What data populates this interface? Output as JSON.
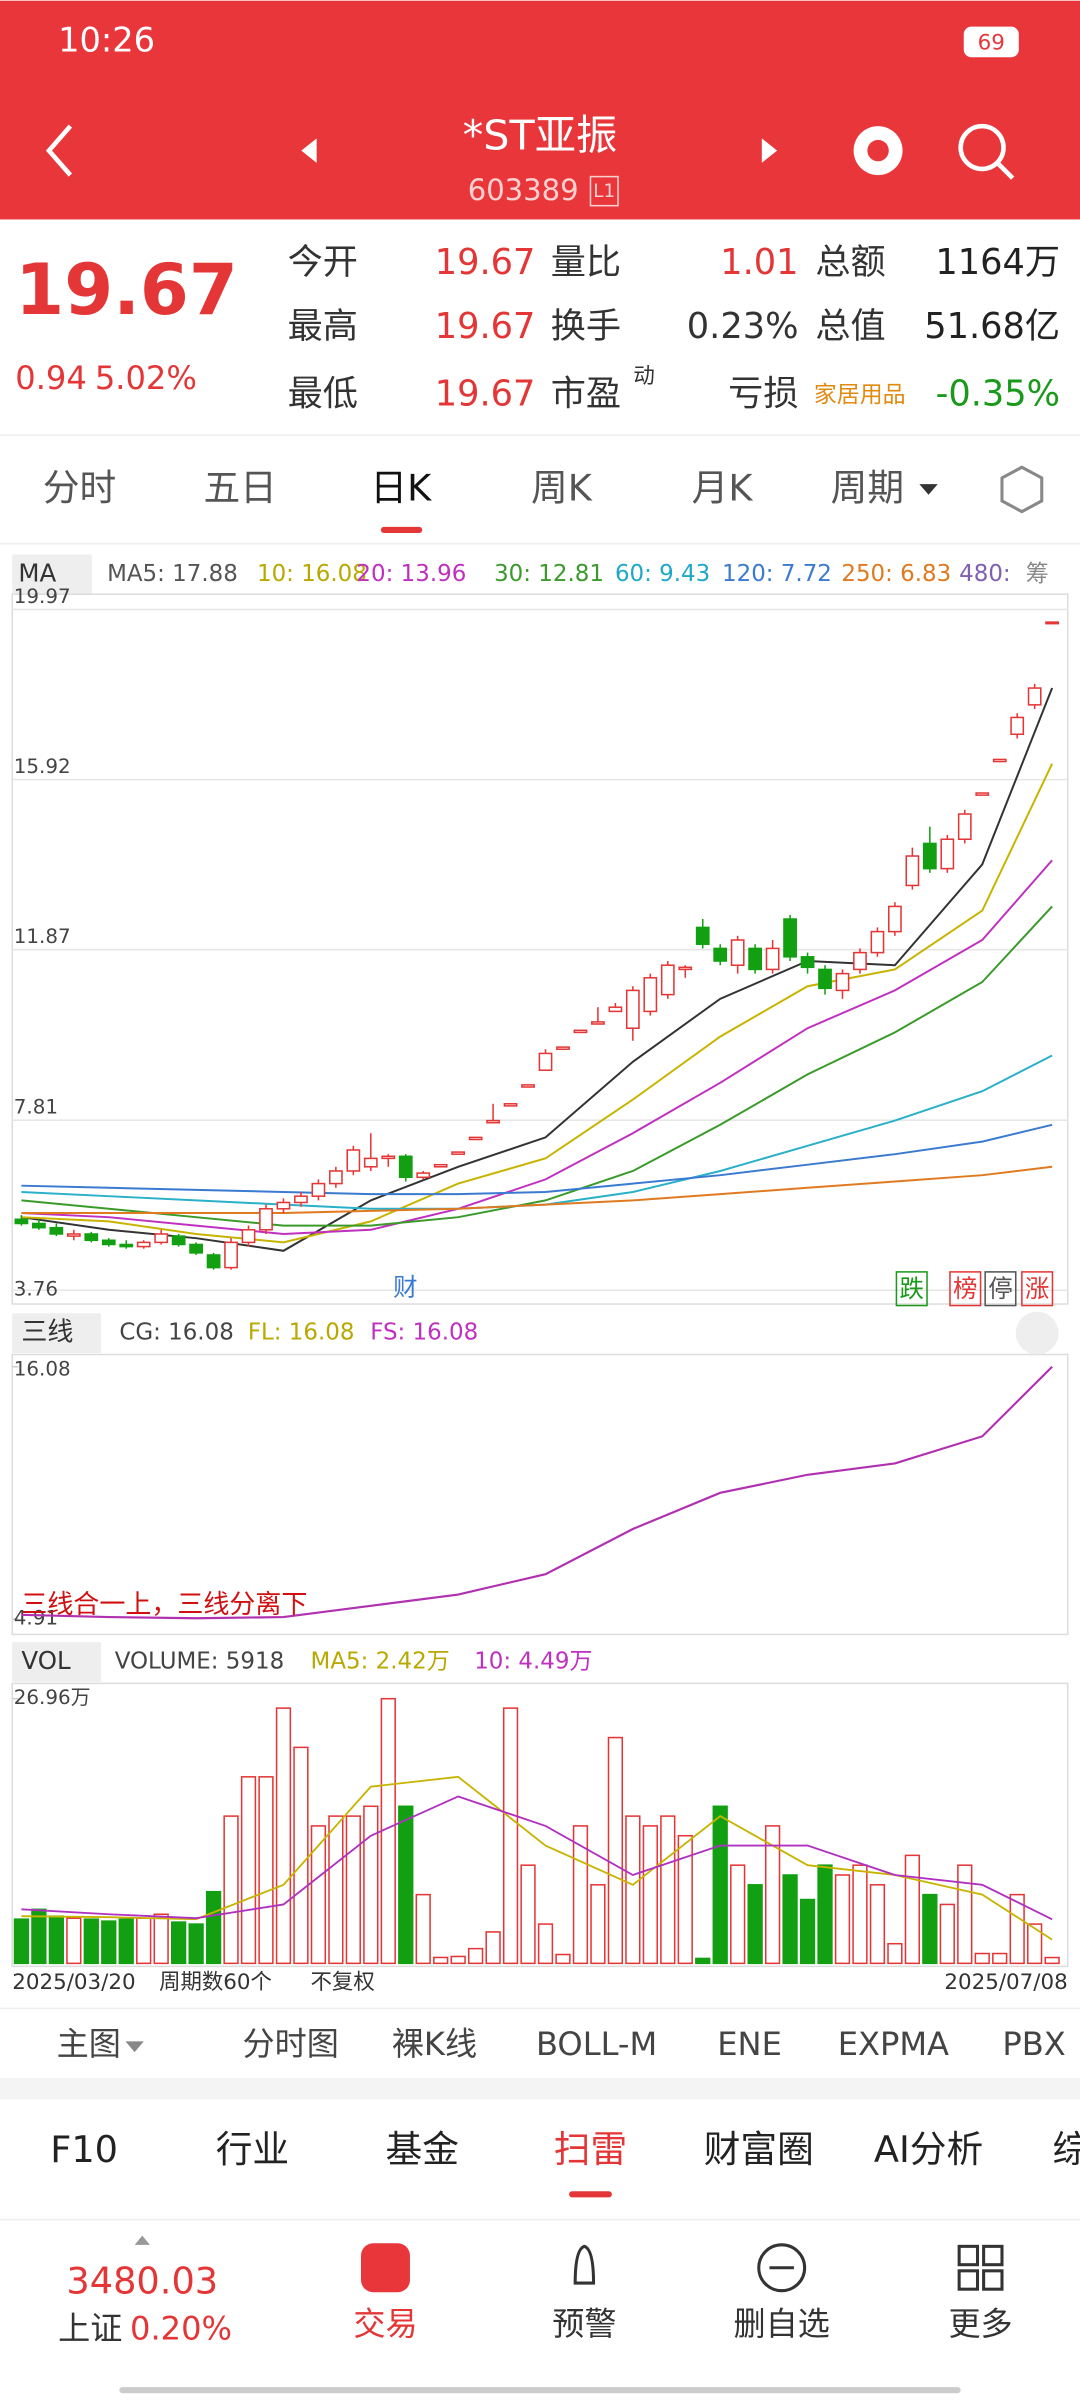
{
  "status": {
    "time": "10:26",
    "battery": "69"
  },
  "header": {
    "title": "*ST亚振",
    "code": "603389",
    "badge": "L1"
  },
  "quote": {
    "price": "19.67",
    "change": "0.94",
    "pct": "5.02%",
    "left": [
      {
        "label": "今开",
        "value": "19.67"
      },
      {
        "label": "最高",
        "value": "19.67"
      },
      {
        "label": "最低",
        "value": "19.67"
      }
    ],
    "mid": [
      {
        "label": "量比",
        "value": "1.01"
      },
      {
        "label": "换手",
        "value": "0.23%"
      },
      {
        "label": "市盈",
        "sup": "动",
        "value": "亏损"
      }
    ],
    "right": [
      {
        "label": "总额",
        "value": "1164万"
      },
      {
        "label": "总值",
        "value": "51.68亿"
      },
      {
        "label": "家居用品",
        "value": "-0.35%"
      }
    ]
  },
  "tabs": [
    "分时",
    "五日",
    "日K",
    "周K",
    "月K",
    "周期"
  ],
  "kline": {
    "legend": [
      "MA",
      "MA5: 17.88",
      "10: 16.08",
      "20: 13.96",
      "30: 12.81",
      "60: 9.43",
      "120: 7.72",
      "250: 6.83",
      "480:",
      "筹"
    ],
    "ylim": [
      3.76,
      19.97
    ],
    "yticks": [
      19.97,
      15.92,
      11.87,
      7.81,
      3.76
    ],
    "candles": [
      [
        5.45,
        5.55,
        5.3,
        5.35
      ],
      [
        5.35,
        5.45,
        5.2,
        5.25
      ],
      [
        5.25,
        5.35,
        5.05,
        5.1
      ],
      [
        5.05,
        5.2,
        4.95,
        5.1
      ],
      [
        5.1,
        5.15,
        4.9,
        4.95
      ],
      [
        4.95,
        5.0,
        4.8,
        4.85
      ],
      [
        4.85,
        4.95,
        4.75,
        4.8
      ],
      [
        4.8,
        4.95,
        4.75,
        4.9
      ],
      [
        4.9,
        5.2,
        4.85,
        5.1
      ],
      [
        5.05,
        5.1,
        4.8,
        4.85
      ],
      [
        4.85,
        4.9,
        4.6,
        4.65
      ],
      [
        4.6,
        4.65,
        4.25,
        4.3
      ],
      [
        4.3,
        5.0,
        4.25,
        4.9
      ],
      [
        4.9,
        5.3,
        4.8,
        5.2
      ],
      [
        5.2,
        5.8,
        5.1,
        5.7
      ],
      [
        5.7,
        5.95,
        5.6,
        5.85
      ],
      [
        5.85,
        6.1,
        5.75,
        6.0
      ],
      [
        6.0,
        6.4,
        5.9,
        6.3
      ],
      [
        6.3,
        6.7,
        6.2,
        6.6
      ],
      [
        6.6,
        7.2,
        6.5,
        7.1
      ],
      [
        6.7,
        7.5,
        6.6,
        6.9
      ],
      [
        6.9,
        7.0,
        6.7,
        6.95
      ],
      [
        6.95,
        7.0,
        6.35,
        6.45
      ],
      [
        6.45,
        6.6,
        6.4,
        6.55
      ],
      [
        6.7,
        6.75,
        6.7,
        6.75
      ],
      [
        7.0,
        7.05,
        7.0,
        7.05
      ],
      [
        7.35,
        7.4,
        7.35,
        7.4
      ],
      [
        7.75,
        8.2,
        7.75,
        7.8
      ],
      [
        8.15,
        8.2,
        8.15,
        8.2
      ],
      [
        8.6,
        8.65,
        8.6,
        8.65
      ],
      [
        9.0,
        9.5,
        9.0,
        9.4
      ],
      [
        9.5,
        9.55,
        9.5,
        9.55
      ],
      [
        9.9,
        9.95,
        9.9,
        9.95
      ],
      [
        10.1,
        10.5,
        10.1,
        10.15
      ],
      [
        10.4,
        10.6,
        10.4,
        10.5
      ],
      [
        10.0,
        11.0,
        9.7,
        10.9
      ],
      [
        10.4,
        11.3,
        10.3,
        11.2
      ],
      [
        10.8,
        11.6,
        10.7,
        11.5
      ],
      [
        11.4,
        11.5,
        11.2,
        11.45
      ],
      [
        12.4,
        12.6,
        11.9,
        12.0
      ],
      [
        11.9,
        12.0,
        11.5,
        11.6
      ],
      [
        11.5,
        12.2,
        11.3,
        12.1
      ],
      [
        11.9,
        12.0,
        11.3,
        11.4
      ],
      [
        11.4,
        12.1,
        11.3,
        11.9
      ],
      [
        12.6,
        12.7,
        11.6,
        11.7
      ],
      [
        11.7,
        11.8,
        11.3,
        11.45
      ],
      [
        11.4,
        11.5,
        10.8,
        10.95
      ],
      [
        10.9,
        11.4,
        10.7,
        11.3
      ],
      [
        11.4,
        11.9,
        11.3,
        11.8
      ],
      [
        11.8,
        12.4,
        11.7,
        12.3
      ],
      [
        12.3,
        13.0,
        12.2,
        12.9
      ],
      [
        13.4,
        14.3,
        13.3,
        14.1
      ],
      [
        14.4,
        14.8,
        13.7,
        13.8
      ],
      [
        13.8,
        14.6,
        13.7,
        14.5
      ],
      [
        14.5,
        15.2,
        14.4,
        15.1
      ],
      [
        15.55,
        15.6,
        15.55,
        15.6
      ],
      [
        16.35,
        16.4,
        16.35,
        16.4
      ],
      [
        17.0,
        17.5,
        16.9,
        17.4
      ],
      [
        17.7,
        18.2,
        17.6,
        18.1
      ],
      [
        19.67,
        19.67,
        19.67,
        19.67
      ]
    ],
    "ma_x": [
      0,
      5,
      10,
      15,
      20,
      25,
      30,
      35,
      40,
      45,
      50,
      55,
      59
    ],
    "ma": [
      {
        "color": "#333333",
        "values": [
          5.5,
          5.2,
          5.0,
          4.7,
          5.9,
          6.7,
          7.4,
          9.2,
          10.7,
          11.6,
          11.5,
          13.9,
          18.1
        ]
      },
      {
        "color": "#c8b400",
        "values": [
          5.5,
          5.4,
          5.1,
          4.9,
          5.4,
          6.3,
          6.9,
          8.3,
          9.8,
          11.0,
          11.4,
          12.8,
          16.3
        ]
      },
      {
        "color": "#c030c0",
        "values": [
          5.6,
          5.5,
          5.3,
          5.1,
          5.2,
          5.7,
          6.4,
          7.5,
          8.7,
          10.0,
          10.9,
          12.1,
          14.0
        ]
      },
      {
        "color": "#3a9a2a",
        "values": [
          5.9,
          5.7,
          5.5,
          5.3,
          5.3,
          5.5,
          5.9,
          6.6,
          7.7,
          8.9,
          9.9,
          11.1,
          12.9
        ]
      },
      {
        "color": "#2ab0c8",
        "values": [
          6.1,
          6.0,
          5.9,
          5.8,
          5.7,
          5.7,
          5.8,
          6.1,
          6.6,
          7.2,
          7.8,
          8.5,
          9.35
        ]
      },
      {
        "color": "#3a7ad0",
        "values": [
          6.25,
          6.2,
          6.15,
          6.1,
          6.05,
          6.05,
          6.1,
          6.3,
          6.5,
          6.75,
          7.0,
          7.3,
          7.7
        ]
      },
      {
        "color": "#e07a20",
        "values": [
          5.6,
          5.6,
          5.6,
          5.6,
          5.65,
          5.7,
          5.8,
          5.9,
          6.05,
          6.2,
          6.35,
          6.5,
          6.7
        ]
      }
    ],
    "markers": {
      "finance": "财",
      "right": [
        "跌",
        "榜",
        "停",
        "涨"
      ]
    }
  },
  "three": {
    "legend": [
      "三线",
      "CG: 16.08",
      "FL: 16.08",
      "FS: 16.08"
    ],
    "ylim": [
      4.91,
      16.08
    ],
    "yticks": [
      16.08,
      4.91
    ],
    "note": "三线合一上，三线分离下",
    "color": "#b030b0",
    "values": [
      5.1,
      5.0,
      4.95,
      5.0,
      5.5,
      6.0,
      6.9,
      8.9,
      10.5,
      11.3,
      11.8,
      13.0,
      16.08
    ]
  },
  "vol": {
    "legend": [
      "VOL",
      "VOLUME: 5918",
      "MA5: 2.42万",
      "10: 4.49万"
    ],
    "ylim": [
      0,
      26.96
    ],
    "yticks": [
      {
        "value": 26.96,
        "label": "26.96万"
      }
    ],
    "values": [
      4.5,
      5.5,
      4.8,
      4.6,
      4.5,
      4.3,
      4.5,
      4.6,
      5.0,
      4.2,
      4.0,
      7.3,
      15,
      19,
      19,
      26,
      22,
      14,
      15,
      15,
      16,
      26.96,
      16,
      7,
      0.6,
      0.7,
      1.5,
      3.2,
      26,
      10,
      4,
      0.9,
      14,
      8,
      23,
      15,
      14,
      15,
      13,
      0.5,
      16,
      10,
      8,
      14,
      9,
      6.5,
      10,
      9,
      10,
      8,
      2,
      11,
      7,
      6,
      10,
      1,
      1,
      7,
      4,
      0.5918
    ],
    "ma": [
      {
        "color": "#c8b400",
        "values": [
          4.8,
          4.7,
          4.5,
          8,
          18,
          19,
          12,
          8,
          15,
          10,
          9,
          7,
          2.42
        ]
      },
      {
        "color": "#b030c0",
        "values": [
          5.5,
          5,
          4.6,
          6,
          13,
          17,
          14,
          9,
          12,
          12,
          9,
          8,
          4.49
        ]
      }
    ]
  },
  "xaxis": [
    "2025/03/20",
    "周期数60个",
    "不复权",
    "2025/07/08"
  ],
  "indicators": [
    "主图",
    "分时图",
    "裸K线",
    "BOLL-M",
    "ENE",
    "EXPMA",
    "PBX"
  ],
  "sections": [
    "F10",
    "行业",
    "基金",
    "扫雷",
    "财富圈",
    "AI分析",
    "综"
  ],
  "footer": {
    "index_value": "3480.03",
    "index_name": "上证",
    "index_pct": "0.20%",
    "nav": [
      "交易",
      "预警",
      "删自选",
      "更多"
    ]
  }
}
